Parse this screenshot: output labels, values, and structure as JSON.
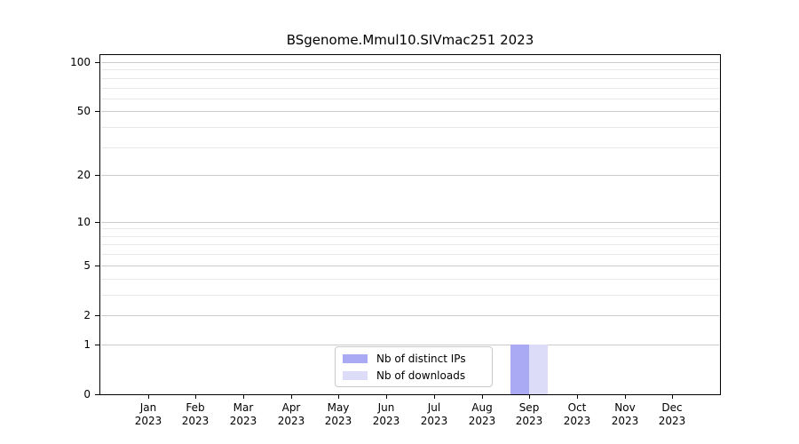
{
  "chart_data": {
    "type": "bar",
    "title": "BSgenome.Mmul10.SIVmac251 2023",
    "categories": [
      "Jan",
      "Feb",
      "Mar",
      "Apr",
      "May",
      "Jun",
      "Jul",
      "Aug",
      "Sep",
      "Oct",
      "Nov",
      "Dec"
    ],
    "category_year": "2023",
    "series": [
      {
        "name": "Nb of distinct IPs",
        "color": "#a9a9f4",
        "values": [
          0,
          0,
          0,
          0,
          0,
          0,
          0,
          0,
          1,
          0,
          0,
          0
        ]
      },
      {
        "name": "Nb of downloads",
        "color": "#dcdcf8",
        "values": [
          0,
          0,
          0,
          0,
          0,
          0,
          0,
          0,
          1,
          0,
          0,
          0
        ]
      }
    ],
    "y_axis": {
      "scale": "log1p",
      "ticks": [
        100,
        50,
        20,
        10,
        5,
        2,
        1,
        0
      ],
      "minor_ticks": [
        3,
        4,
        6,
        7,
        8,
        9,
        30,
        40,
        60,
        70,
        80,
        90
      ],
      "range": [
        0,
        100
      ]
    },
    "legend": {
      "position": "inside-bottom-center",
      "entries": [
        "Nb of distinct IPs",
        "Nb of downloads"
      ]
    },
    "grid": "on",
    "colors": {
      "major_grid": "#cbcbcb",
      "minor_grid": "#e8e8e8",
      "axis": "#000000",
      "background": "#ffffff"
    }
  }
}
